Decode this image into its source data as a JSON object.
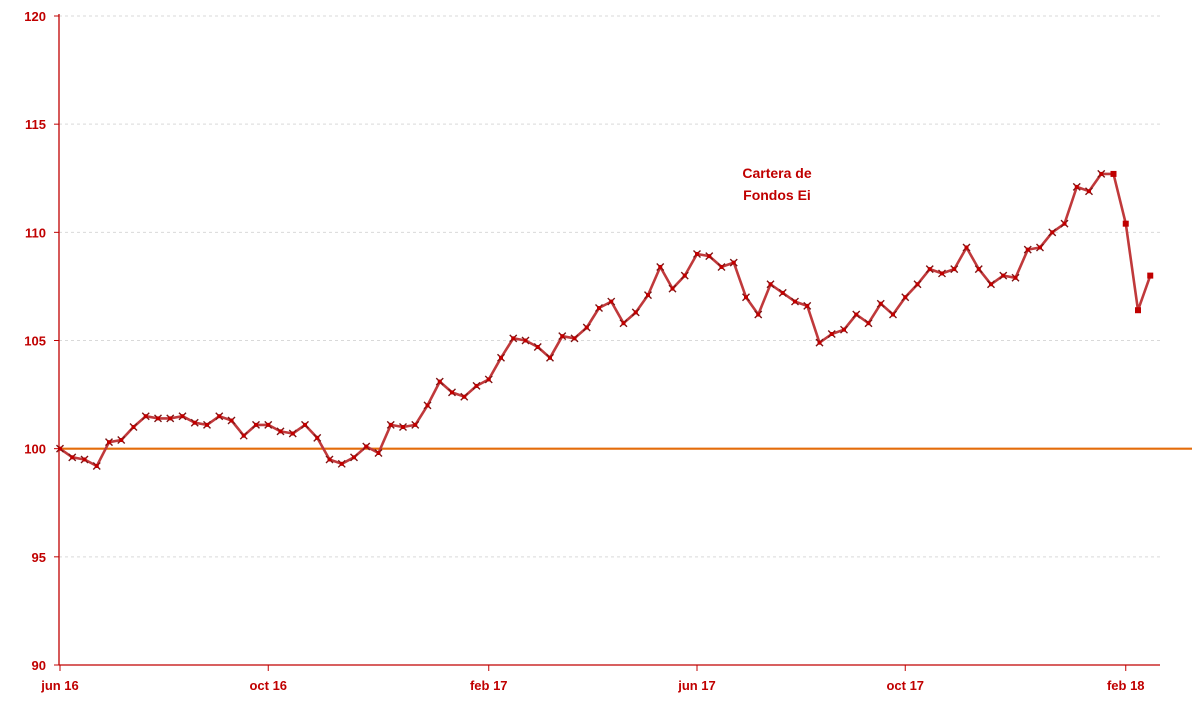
{
  "chart_data": {
    "type": "line",
    "title": "",
    "xlabel": "",
    "ylabel": "",
    "ylim": [
      90,
      120
    ],
    "yticks": [
      90,
      95,
      100,
      105,
      110,
      115,
      120
    ],
    "xtick_labels": [
      "jun 16",
      "oct 16",
      "feb 17",
      "jun 17",
      "oct 17",
      "feb 18"
    ],
    "grid": {
      "horizontal": true,
      "vertical": false,
      "style": "dotted"
    },
    "legend": "none",
    "annotation": [
      "Cartera de",
      "Fondos Ei"
    ],
    "colors": {
      "series": "#c0393b",
      "marker": "#c00000",
      "reference": "#e46c0a",
      "axis": "#c00000",
      "text": "#c00000"
    },
    "series": [
      {
        "values": [
          100.0,
          99.6,
          99.5,
          99.2,
          100.3,
          100.4,
          101.0,
          101.5,
          101.4,
          101.4,
          101.5,
          101.2,
          101.1,
          101.5,
          101.3,
          100.6,
          101.1,
          101.1,
          100.8,
          100.7,
          101.1,
          100.5,
          99.5,
          99.3,
          99.6,
          100.1,
          99.8,
          101.1,
          101.0,
          101.1,
          102.0,
          103.1,
          102.6,
          102.4,
          102.9,
          103.2,
          104.2,
          105.1,
          105.0,
          104.7,
          104.2,
          105.2,
          105.1,
          105.6,
          106.5,
          106.8,
          105.8,
          106.3,
          107.1,
          108.4,
          107.4,
          108.0,
          109.0,
          108.9,
          108.4,
          108.6,
          107.0,
          106.2,
          107.6,
          107.2,
          106.8,
          106.6,
          104.9,
          105.3,
          105.5,
          106.2,
          105.8,
          106.7,
          106.2,
          107.0,
          107.6,
          108.3,
          108.1,
          108.3,
          109.3,
          108.3,
          107.6,
          108.0,
          107.9,
          109.2,
          109.3,
          110.0,
          110.4,
          112.1,
          111.9,
          112.7,
          112.7,
          110.4,
          106.4,
          108.0
        ]
      },
      {
        "values": [
          100.0,
          100.0
        ]
      }
    ]
  }
}
